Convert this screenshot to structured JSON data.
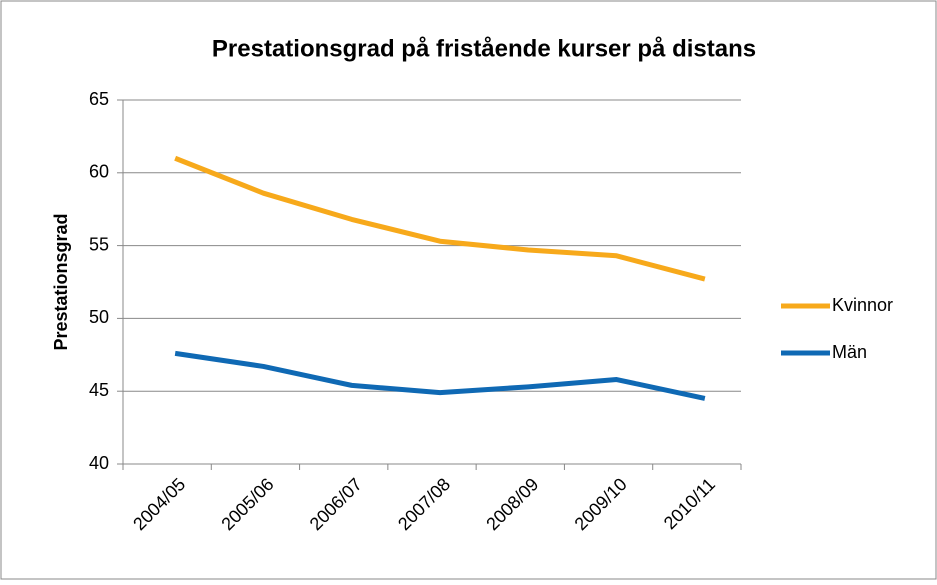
{
  "chart_data": {
    "type": "line",
    "title": "Prestationsgrad på fristående kurser på distans",
    "y_label": "Prestationsgrad",
    "categories": [
      "2004/05",
      "2005/06",
      "2006/07",
      "2007/08",
      "2008/09",
      "2009/10",
      "2010/11"
    ],
    "series": [
      {
        "name": "Kvinnor",
        "color": "#f7a91b",
        "values": [
          61.0,
          58.6,
          56.8,
          55.3,
          54.7,
          54.3,
          52.7
        ]
      },
      {
        "name": "Män",
        "color": "#0f69b4",
        "values": [
          47.6,
          46.7,
          45.4,
          44.9,
          45.3,
          45.8,
          44.5
        ]
      }
    ],
    "ylim": [
      40,
      65
    ],
    "yticks": [
      40,
      45,
      50,
      55,
      60,
      65
    ],
    "grid": true,
    "legend": "right"
  }
}
